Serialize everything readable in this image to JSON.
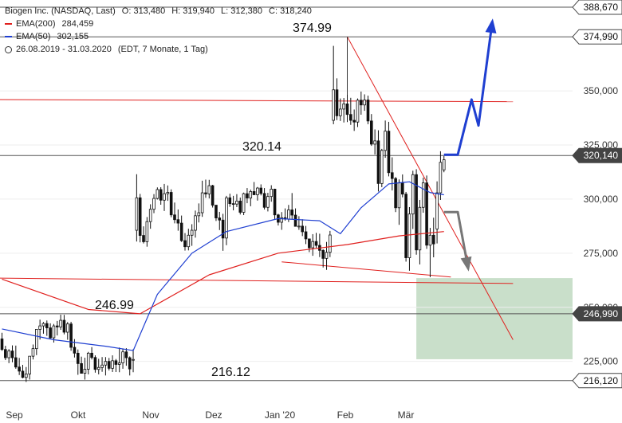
{
  "legend": {
    "title": "Biogen Inc. (NASDAQ, Last)",
    "ohlc": {
      "o": "O: 313,480",
      "h": "H: 319,940",
      "l": "L: 312,380",
      "c": "C: 318,240"
    },
    "ema200": {
      "label": "EMA(200)",
      "value": "284,459",
      "color": "#e0201e"
    },
    "ema50": {
      "label": "EMA(50)",
      "value": "302,155",
      "color": "#1f3fd1"
    },
    "range": "26.08.2019 - 31.03.2020",
    "period": "(EDT, 7 Monate, 1 Tag)"
  },
  "chart_data": {
    "type": "candlestick",
    "x_ticks": [
      "Sep",
      "Okt",
      "Nov",
      "Dez",
      "Jan '20",
      "Feb",
      "Mär"
    ],
    "y_ticks": [
      "225,000",
      "250,000",
      "275,000",
      "300,000",
      "325,000",
      "350,000"
    ],
    "ylim": [
      205,
      392
    ],
    "price_badges": [
      {
        "value": 388.67,
        "label": "388,670",
        "style": "plain"
      },
      {
        "value": 374.99,
        "label": "374,990",
        "style": "plain"
      },
      {
        "value": 320.14,
        "label": "320,140",
        "style": "dark"
      },
      {
        "value": 246.99,
        "label": "246,990",
        "style": "dark"
      },
      {
        "value": 216.12,
        "label": "216,120",
        "style": "plain"
      }
    ],
    "horizontal_levels": [
      388.67,
      374.99,
      320.14,
      246.99,
      216.12
    ],
    "level_labels": [
      {
        "text": "374.99",
        "value": 374.99
      },
      {
        "text": "320.14",
        "value": 320.14
      },
      {
        "text": "246.99",
        "value": 246.99
      },
      {
        "text": "216.12",
        "value": 216.12
      }
    ],
    "support_zone": {
      "from_bar": 120,
      "y_low": 226,
      "y_high": 263.5,
      "color": "#c9dfca"
    },
    "trendlines": [
      {
        "points": [
          [
            -1,
            346
          ],
          [
            148,
            345
          ]
        ],
        "color": "#e0201e"
      },
      {
        "points": [
          [
            -1,
            263.5
          ],
          [
            148,
            261
          ]
        ],
        "color": "#e0201e"
      },
      {
        "points": [
          [
            100,
            375
          ],
          [
            148,
            235
          ]
        ],
        "color": "#e0201e"
      },
      {
        "points": [
          [
            81,
            271
          ],
          [
            130,
            264
          ]
        ],
        "color": "#e0201e"
      }
    ],
    "forecast_up": {
      "points": [
        [
          128,
          320.5
        ],
        [
          132,
          320.5
        ],
        [
          136,
          346
        ],
        [
          138,
          334
        ],
        [
          142,
          382
        ]
      ],
      "color": "#1f3fd1"
    },
    "forecast_down": {
      "points": [
        [
          128,
          294
        ],
        [
          132,
          294
        ],
        [
          135,
          268
        ]
      ],
      "color": "#777777"
    },
    "candles": [
      [
        235.4,
        238.2,
        229.9,
        230.5
      ],
      [
        230.5,
        232.2,
        225.6,
        226.7
      ],
      [
        226.7,
        230.7,
        224.2,
        229.8
      ],
      [
        229.8,
        232.4,
        224.6,
        226.7
      ],
      [
        226.7,
        232.3,
        221.6,
        222.4
      ],
      [
        222.4,
        226.6,
        218.7,
        220.5
      ],
      [
        220.5,
        223.4,
        217.2,
        217.6
      ],
      [
        217.6,
        222.4,
        215.5,
        219.2
      ],
      [
        219.2,
        227.4,
        216.6,
        227.4
      ],
      [
        227.4,
        232.8,
        225.9,
        230.9
      ],
      [
        230.9,
        239.8,
        227.9,
        239.8
      ],
      [
        239.8,
        244.3,
        235.1,
        241.4
      ],
      [
        241.4,
        243.2,
        237.8,
        242.5
      ],
      [
        242.5,
        243.9,
        236.8,
        240.5
      ],
      [
        240.5,
        242.6,
        235.4,
        235.9
      ],
      [
        235.9,
        242.3,
        233.7,
        241.4
      ],
      [
        241.4,
        243.7,
        237.0,
        240.9
      ],
      [
        240.9,
        246.6,
        239.6,
        244.0
      ],
      [
        244.0,
        246.5,
        237.5,
        238.5
      ],
      [
        238.5,
        243.2,
        235.0,
        242.3
      ],
      [
        242.3,
        243.3,
        229.9,
        231.5
      ],
      [
        231.5,
        235.3,
        226.8,
        228.8
      ],
      [
        228.8,
        230.5,
        218.8,
        224.0
      ],
      [
        224.0,
        227.2,
        219.4,
        219.5
      ],
      [
        219.5,
        226.7,
        216.6,
        221.4
      ],
      [
        221.4,
        229.4,
        219.0,
        228.8
      ],
      [
        228.8,
        231.6,
        225.9,
        226.8
      ],
      [
        226.8,
        227.8,
        219.8,
        221.3
      ],
      [
        221.3,
        226.2,
        219.0,
        222.2
      ],
      [
        222.2,
        227.0,
        220.2,
        223.3
      ],
      [
        223.3,
        227.0,
        218.5,
        225.0
      ],
      [
        225.0,
        226.6,
        220.8,
        221.8
      ],
      [
        221.8,
        227.8,
        220.1,
        225.3
      ],
      [
        225.3,
        226.1,
        220.1,
        223.6
      ],
      [
        223.6,
        231.4,
        220.0,
        224.3
      ],
      [
        224.3,
        231.0,
        221.6,
        229.4
      ],
      [
        229.4,
        231.1,
        223.0,
        226.7
      ],
      [
        226.7,
        227.3,
        218.5,
        221.5
      ],
      [
        225.7,
        230.6,
        220.0,
        225.9
      ],
      [
        285.6,
        311.5,
        280.4,
        300.6
      ],
      [
        300.6,
        302.4,
        280.0,
        283.2
      ],
      [
        283.2,
        287.4,
        279.5,
        280.3
      ],
      [
        280.3,
        291.7,
        278.0,
        289.6
      ],
      [
        289.6,
        297.6,
        286.3,
        295.3
      ],
      [
        295.3,
        302.3,
        293.5,
        300.3
      ],
      [
        300.3,
        305.4,
        299.8,
        304.4
      ],
      [
        304.4,
        305.5,
        297.4,
        299.5
      ],
      [
        299.5,
        307.0,
        294.5,
        302.5
      ],
      [
        302.5,
        306.3,
        299.2,
        303.1
      ],
      [
        303.1,
        304.5,
        291.6,
        292.7
      ],
      [
        292.7,
        298.4,
        288.8,
        290.5
      ],
      [
        290.5,
        295.2,
        285.4,
        288.9
      ],
      [
        288.9,
        292.4,
        280.2,
        280.8
      ],
      [
        280.8,
        284.3,
        276.2,
        278.0
      ],
      [
        278.0,
        286.3,
        276.3,
        283.3
      ],
      [
        283.3,
        288.4,
        278.4,
        285.6
      ],
      [
        285.6,
        294.7,
        282.2,
        292.3
      ],
      [
        292.3,
        298.0,
        289.2,
        293.7
      ],
      [
        293.7,
        308.5,
        291.8,
        302.9
      ],
      [
        302.9,
        309.0,
        300.6,
        302.4
      ],
      [
        302.4,
        308.9,
        300.3,
        306.2
      ],
      [
        306.2,
        306.6,
        296.1,
        297.2
      ],
      [
        297.2,
        297.2,
        289.9,
        291.3
      ],
      [
        291.3,
        294.1,
        285.7,
        290.3
      ],
      [
        290.3,
        293.2,
        276.1,
        282.0
      ],
      [
        282.0,
        301.5,
        278.7,
        300.6
      ],
      [
        300.6,
        302.5,
        296.4,
        297.9
      ],
      [
        297.9,
        301.5,
        294.8,
        297.7
      ],
      [
        297.7,
        302.3,
        296.3,
        299.1
      ],
      [
        299.1,
        300.7,
        292.9,
        293.9
      ],
      [
        293.9,
        303.0,
        292.6,
        302.5
      ],
      [
        302.5,
        305.1,
        298.1,
        300.5
      ],
      [
        300.5,
        304.4,
        296.7,
        303.5
      ],
      [
        303.5,
        307.9,
        301.9,
        302.0
      ],
      [
        302.0,
        305.6,
        299.3,
        305.1
      ],
      [
        305.1,
        306.8,
        301.7,
        302.6
      ],
      [
        302.6,
        305.1,
        295.2,
        296.2
      ],
      [
        296.2,
        302.9,
        294.3,
        301.2
      ],
      [
        301.2,
        306.4,
        298.8,
        304.6
      ],
      [
        304.6,
        304.8,
        290.8,
        292.7
      ],
      [
        292.7,
        293.2,
        287.8,
        289.3
      ],
      [
        289.3,
        294.0,
        285.8,
        291.4
      ],
      [
        291.4,
        295.7,
        290.0,
        290.8
      ],
      [
        290.8,
        297.3,
        289.4,
        295.0
      ],
      [
        295.0,
        302.8,
        290.7,
        292.6
      ],
      [
        292.6,
        295.7,
        287.3,
        287.4
      ],
      [
        287.4,
        292.1,
        285.8,
        287.5
      ],
      [
        287.5,
        290.7,
        282.9,
        284.9
      ],
      [
        284.9,
        287.6,
        279.2,
        281.6
      ],
      [
        281.6,
        281.6,
        275.5,
        277.5
      ],
      [
        277.5,
        283.8,
        273.8,
        280.4
      ],
      [
        280.4,
        284.4,
        277.4,
        278.6
      ],
      [
        278.6,
        284.0,
        273.2,
        276.3
      ],
      [
        276.3,
        276.8,
        268.4,
        272.6
      ],
      [
        272.6,
        280.2,
        267.3,
        275.4
      ],
      [
        275.4,
        285.3,
        273.2,
        283.4
      ],
      [
        336.4,
        370.8,
        334.6,
        350.5
      ],
      [
        350.5,
        355.8,
        336.5,
        338.5
      ],
      [
        338.5,
        346.5,
        336.1,
        341.6
      ],
      [
        341.6,
        346.7,
        335.4,
        344.0
      ],
      [
        344.0,
        348.2,
        335.6,
        339.1
      ],
      [
        339.1,
        346.8,
        334.3,
        336.4
      ],
      [
        336.4,
        341.4,
        331.5,
        335.6
      ],
      [
        335.6,
        346.5,
        333.3,
        345.7
      ],
      [
        345.7,
        349.7,
        339.0,
        343.5
      ],
      [
        343.5,
        348.4,
        340.8,
        345.8
      ],
      [
        345.8,
        347.8,
        334.6,
        336.1
      ],
      [
        336.1,
        339.3,
        324.6,
        325.4
      ],
      [
        325.4,
        332.2,
        320.6,
        326.9
      ],
      [
        326.9,
        331.8,
        303.5,
        307.2
      ],
      [
        307.2,
        323.2,
        305.5,
        322.5
      ],
      [
        322.5,
        336.3,
        319.1,
        331.4
      ],
      [
        331.4,
        335.7,
        310.5,
        312.2
      ],
      [
        312.2,
        319.3,
        304.0,
        309.5
      ],
      [
        309.5,
        310.2,
        294.0,
        296.0
      ],
      [
        296.0,
        309.1,
        288.1,
        307.6
      ],
      [
        307.6,
        311.4,
        300.8,
        302.3
      ],
      [
        302.3,
        303.3,
        271.1,
        272.9
      ],
      [
        272.9,
        296.3,
        266.9,
        293.1
      ],
      [
        293.1,
        313.1,
        286.2,
        311.3
      ],
      [
        311.3,
        313.8,
        274.3,
        276.5
      ],
      [
        276.5,
        299.6,
        269.8,
        296.2
      ],
      [
        296.2,
        309.9,
        293.7,
        307.5
      ],
      [
        307.5,
        310.9,
        277.0,
        278.7
      ],
      [
        278.7,
        286.7,
        263.9,
        283.3
      ],
      [
        283.3,
        291.4,
        273.1,
        279.3
      ],
      [
        286.2,
        308.2,
        279.5,
        302.9
      ],
      [
        302.9,
        322.1,
        299.6,
        317.0
      ],
      [
        313.5,
        319.9,
        312.4,
        318.2
      ]
    ],
    "ema200": [
      [
        0,
        263
      ],
      [
        25,
        249
      ],
      [
        40,
        247
      ],
      [
        60,
        265
      ],
      [
        80,
        275
      ],
      [
        100,
        279
      ],
      [
        115,
        283
      ],
      [
        128,
        285
      ]
    ],
    "ema50": [
      [
        0,
        240
      ],
      [
        15,
        235
      ],
      [
        30,
        232
      ],
      [
        38,
        230
      ],
      [
        45,
        256
      ],
      [
        55,
        275
      ],
      [
        65,
        285
      ],
      [
        80,
        291
      ],
      [
        92,
        290
      ],
      [
        98,
        284
      ],
      [
        104,
        296
      ],
      [
        112,
        307
      ],
      [
        118,
        308
      ],
      [
        124,
        303
      ],
      [
        128,
        302
      ]
    ]
  }
}
